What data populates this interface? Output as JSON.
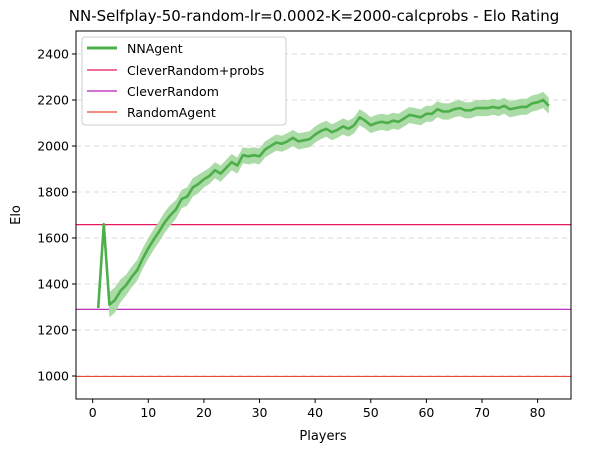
{
  "chart_data": {
    "type": "line",
    "title": "NN-Selfplay-50-random-lr=0.0002-K=2000-calcprobs - Elo Rating",
    "xlabel": "Players",
    "ylabel": "Elo",
    "xlim": [
      -3,
      86
    ],
    "ylim": [
      900,
      2500
    ],
    "xticks": [
      0,
      10,
      20,
      30,
      40,
      50,
      60,
      70,
      80
    ],
    "yticks": [
      1000,
      1200,
      1400,
      1600,
      1800,
      2000,
      2200,
      2400
    ],
    "grid": "horizontal dashed",
    "legend_position": "top-left",
    "series": [
      {
        "name": "NNAgent",
        "color": "#4daf4a",
        "band_color": "#a6d9a1",
        "x": [
          1,
          2,
          3,
          4,
          5,
          6,
          7,
          8,
          9,
          10,
          11,
          12,
          13,
          14,
          15,
          16,
          17,
          18,
          19,
          20,
          21,
          22,
          23,
          24,
          25,
          26,
          27,
          28,
          29,
          30,
          31,
          32,
          33,
          34,
          35,
          36,
          37,
          38,
          39,
          40,
          41,
          42,
          43,
          44,
          45,
          46,
          47,
          48,
          49,
          50,
          51,
          52,
          53,
          54,
          55,
          56,
          57,
          58,
          59,
          60,
          61,
          62,
          63,
          64,
          65,
          66,
          67,
          68,
          69,
          70,
          71,
          72,
          73,
          74,
          75,
          76,
          77,
          78,
          79,
          80,
          81,
          82
        ],
        "y": [
          1295,
          1660,
          1310,
          1330,
          1370,
          1395,
          1430,
          1460,
          1510,
          1555,
          1595,
          1630,
          1670,
          1700,
          1725,
          1770,
          1780,
          1820,
          1835,
          1855,
          1870,
          1895,
          1880,
          1905,
          1930,
          1915,
          1960,
          1955,
          1960,
          1955,
          1985,
          2000,
          2015,
          2010,
          2020,
          2035,
          2020,
          2025,
          2030,
          2050,
          2065,
          2075,
          2060,
          2070,
          2085,
          2075,
          2090,
          2125,
          2110,
          2090,
          2100,
          2105,
          2100,
          2110,
          2105,
          2120,
          2135,
          2130,
          2125,
          2140,
          2140,
          2160,
          2150,
          2150,
          2160,
          2165,
          2155,
          2155,
          2165,
          2165,
          2165,
          2170,
          2165,
          2175,
          2160,
          2165,
          2170,
          2170,
          2185,
          2190,
          2200,
          2175
        ],
        "band": [
          0,
          0,
          55,
          55,
          50,
          45,
          45,
          45,
          45,
          45,
          45,
          45,
          45,
          45,
          40,
          40,
          40,
          40,
          40,
          35,
          35,
          35,
          35,
          35,
          35,
          35,
          35,
          35,
          35,
          35,
          35,
          35,
          35,
          35,
          35,
          35,
          35,
          35,
          35,
          35,
          35,
          35,
          35,
          35,
          35,
          35,
          35,
          35,
          35,
          35,
          35,
          35,
          35,
          35,
          35,
          35,
          35,
          35,
          35,
          35,
          35,
          35,
          35,
          35,
          35,
          35,
          35,
          35,
          35,
          35,
          35,
          35,
          35,
          35,
          35,
          35,
          35,
          35,
          35,
          35,
          35,
          35
        ]
      },
      {
        "name": "CleverRandom+probs",
        "color": "#e6195e",
        "y": 1658
      },
      {
        "name": "CleverRandom",
        "color": "#b31ab3",
        "y": 1290
      },
      {
        "name": "RandomAgent",
        "color": "#e64830",
        "y": 998
      }
    ]
  }
}
